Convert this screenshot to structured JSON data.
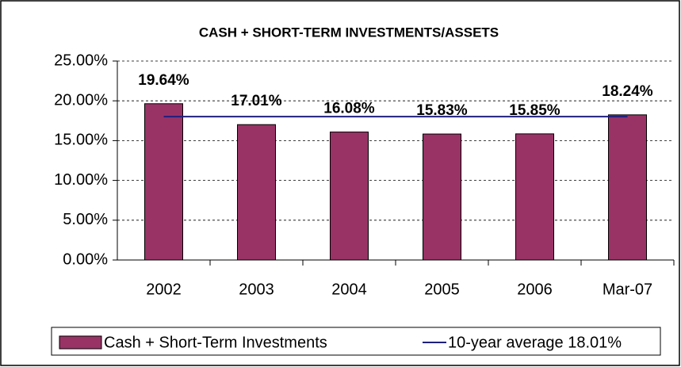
{
  "chart_data": {
    "type": "bar",
    "title": "CASH + SHORT-TERM INVESTMENTS/ASSETS",
    "categories": [
      "2002",
      "2003",
      "2004",
      "2005",
      "2006",
      "Mar-07"
    ],
    "series": [
      {
        "name": "Cash + Short-Term Investments",
        "type": "bar",
        "color": "#993366",
        "values": [
          19.64,
          17.01,
          16.08,
          15.83,
          15.85,
          18.24
        ],
        "value_labels": [
          "19.64%",
          "17.01%",
          "16.08%",
          "15.83%",
          "15.85%",
          "18.24%"
        ]
      },
      {
        "name": "10-year average 18.01%",
        "type": "line",
        "color": "#1f1f7f",
        "values": [
          18.01,
          18.01,
          18.01,
          18.01,
          18.01,
          18.01
        ]
      }
    ],
    "ylim": [
      0,
      25
    ],
    "yticks": [
      {
        "value": 0,
        "label": "0.00%"
      },
      {
        "value": 5,
        "label": "5.00%"
      },
      {
        "value": 10,
        "label": "10.00%"
      },
      {
        "value": 15,
        "label": "15.00%"
      },
      {
        "value": 20,
        "label": "20.00%"
      },
      {
        "value": 25,
        "label": "25.00%"
      }
    ],
    "grid": true,
    "legend": "bottom"
  }
}
